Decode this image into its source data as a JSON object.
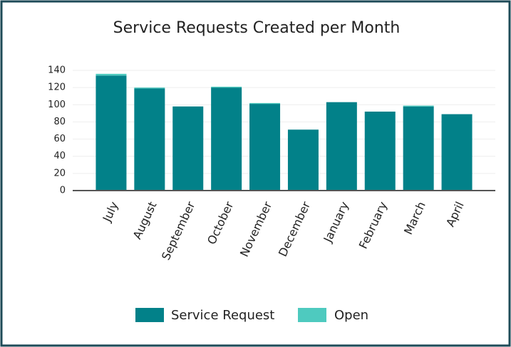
{
  "chart_data": {
    "type": "stacked_bar",
    "title": "Service Requests Created per Month",
    "categories": [
      "July",
      "August",
      "September",
      "October",
      "November",
      "December",
      "January",
      "February",
      "March",
      "April"
    ],
    "series": [
      {
        "name": "Service Request",
        "color": "#028189",
        "values": [
          134,
          119,
          98,
          120,
          101,
          71,
          103,
          92,
          98,
          89
        ]
      },
      {
        "name": "Open",
        "color": "#4ecabf",
        "values": [
          2,
          1,
          0,
          1,
          1,
          0,
          0,
          0,
          1,
          0
        ]
      }
    ],
    "ylim": [
      0,
      140
    ],
    "yticks": [
      0,
      20,
      40,
      60,
      80,
      100,
      120,
      140
    ],
    "grid": true,
    "legend": "bottom"
  }
}
